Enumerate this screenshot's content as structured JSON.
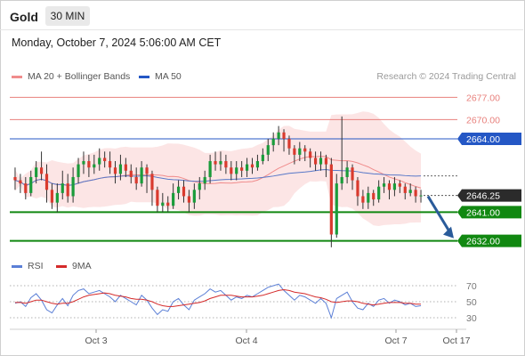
{
  "header": {
    "symbol": "Gold",
    "timeframe": "30 MIN",
    "datetime": "Monday, October 7, 2024 5:06:00 AM CET"
  },
  "legend": {
    "ma20": "MA 20 + Bollinger Bands",
    "ma50": "MA 50",
    "credit": "Research © 2024 Trading Central"
  },
  "rsi_legend": {
    "rsi": "RSI",
    "ma9": "9MA"
  },
  "colors": {
    "resistance": "#e8807c",
    "pivot": "#2457c5",
    "support": "#118811",
    "current": "#2b2b2b",
    "candle_up": "#1a9c3a",
    "candle_down": "#d93a2e",
    "arrow": "#2a5b9a",
    "band": "#fbe1e1",
    "rsi_line": "#5b7fd6",
    "rsi_ma": "#d42a2a"
  },
  "chart_data": [
    {
      "type": "candlestick",
      "title": "Gold",
      "timeframe": "30 MIN",
      "x_ticks": [
        "Oct 3",
        "Oct 4",
        "Oct 7",
        "Oct 17"
      ],
      "ylim": [
        2628,
        2681
      ],
      "levels": [
        {
          "label": "2677.00",
          "value": 2677.0,
          "kind": "resistance"
        },
        {
          "label": "2670.00",
          "value": 2670.0,
          "kind": "resistance"
        },
        {
          "label": "2664.00",
          "value": 2664.0,
          "kind": "pivot"
        },
        {
          "label": "2646.25",
          "value": 2646.25,
          "kind": "current"
        },
        {
          "label": "2641.00",
          "value": 2641.0,
          "kind": "support"
        },
        {
          "label": "2632.00",
          "value": 2632.0,
          "kind": "support"
        }
      ],
      "forecast_arrow": {
        "from": 2646.25,
        "to": 2632.0
      },
      "series": [
        {
          "name": "MA 20 + Bollinger Bands",
          "style": "band"
        },
        {
          "name": "MA 50",
          "style": "line"
        }
      ],
      "candles": [
        [
          2652,
          2651,
          2655,
          2648
        ],
        [
          2651,
          2650,
          2653,
          2647
        ],
        [
          2650,
          2647,
          2652,
          2645
        ],
        [
          2647,
          2652,
          2654,
          2646
        ],
        [
          2652,
          2655,
          2657,
          2650
        ],
        [
          2655,
          2653,
          2660,
          2651
        ],
        [
          2653,
          2648,
          2656,
          2644
        ],
        [
          2648,
          2644,
          2650,
          2642
        ],
        [
          2644,
          2647,
          2650,
          2641
        ],
        [
          2647,
          2650,
          2654,
          2645
        ],
        [
          2650,
          2646,
          2653,
          2644
        ],
        [
          2646,
          2652,
          2655,
          2644
        ],
        [
          2652,
          2656,
          2658,
          2650
        ],
        [
          2656,
          2657,
          2660,
          2653
        ],
        [
          2657,
          2655,
          2659,
          2652
        ],
        [
          2655,
          2656,
          2659,
          2653
        ],
        [
          2656,
          2658,
          2661,
          2654
        ],
        [
          2658,
          2657,
          2660,
          2655
        ],
        [
          2657,
          2655,
          2660,
          2653
        ],
        [
          2655,
          2653,
          2657,
          2650
        ],
        [
          2653,
          2656,
          2659,
          2651
        ],
        [
          2656,
          2654,
          2658,
          2652
        ],
        [
          2654,
          2652,
          2656,
          2650
        ],
        [
          2652,
          2650,
          2655,
          2648
        ],
        [
          2650,
          2655,
          2657,
          2649
        ],
        [
          2655,
          2653,
          2656,
          2647
        ],
        [
          2653,
          2648,
          2654,
          2643
        ],
        [
          2648,
          2643,
          2649,
          2641
        ],
        [
          2643,
          2644,
          2647,
          2641
        ],
        [
          2644,
          2643,
          2646,
          2641
        ],
        [
          2643,
          2647,
          2650,
          2642
        ],
        [
          2647,
          2649,
          2651,
          2645
        ],
        [
          2649,
          2646,
          2651,
          2644
        ],
        [
          2646,
          2644,
          2648,
          2641
        ],
        [
          2644,
          2648,
          2650,
          2642
        ],
        [
          2648,
          2650,
          2652,
          2645
        ],
        [
          2650,
          2652,
          2654,
          2648
        ],
        [
          2652,
          2657,
          2659,
          2650
        ],
        [
          2657,
          2656,
          2660,
          2654
        ],
        [
          2656,
          2657,
          2660,
          2654
        ],
        [
          2657,
          2655,
          2659,
          2653
        ],
        [
          2655,
          2653,
          2657,
          2651
        ],
        [
          2653,
          2655,
          2657,
          2651
        ],
        [
          2655,
          2654,
          2657,
          2652
        ],
        [
          2654,
          2656,
          2658,
          2652
        ],
        [
          2656,
          2655,
          2658,
          2653
        ],
        [
          2655,
          2657,
          2659,
          2654
        ],
        [
          2657,
          2659,
          2661,
          2656
        ],
        [
          2659,
          2662,
          2664,
          2657
        ],
        [
          2662,
          2664,
          2666,
          2660
        ],
        [
          2664,
          2666,
          2668,
          2662
        ],
        [
          2666,
          2664,
          2667,
          2660
        ],
        [
          2664,
          2661,
          2665,
          2659
        ],
        [
          2661,
          2659,
          2662,
          2656
        ],
        [
          2659,
          2661,
          2663,
          2657
        ],
        [
          2661,
          2660,
          2662,
          2657
        ],
        [
          2660,
          2658,
          2661,
          2655
        ],
        [
          2658,
          2656,
          2660,
          2654
        ],
        [
          2656,
          2658,
          2660,
          2654
        ],
        [
          2658,
          2656,
          2659,
          2652
        ],
        [
          2656,
          2634,
          2658,
          2630
        ],
        [
          2634,
          2650,
          2653,
          2633
        ],
        [
          2650,
          2652,
          2671,
          2648
        ],
        [
          2652,
          2655,
          2657,
          2650
        ],
        [
          2655,
          2651,
          2656,
          2648
        ],
        [
          2651,
          2646,
          2652,
          2643
        ],
        [
          2646,
          2644,
          2648,
          2642
        ],
        [
          2644,
          2647,
          2649,
          2642
        ],
        [
          2647,
          2645,
          2648,
          2643
        ],
        [
          2645,
          2649,
          2651,
          2644
        ],
        [
          2649,
          2650,
          2652,
          2647
        ],
        [
          2650,
          2648,
          2651,
          2645
        ],
        [
          2648,
          2650,
          2652,
          2646
        ],
        [
          2650,
          2649,
          2651,
          2647
        ],
        [
          2649,
          2647,
          2650,
          2645
        ],
        [
          2647,
          2648,
          2650,
          2646
        ],
        [
          2648,
          2646,
          2649,
          2644
        ],
        [
          2646,
          2646.25,
          2648,
          2644
        ]
      ]
    },
    {
      "type": "line",
      "title": "RSI",
      "y_ticks": [
        70,
        50,
        30
      ],
      "ylim": [
        20,
        80
      ],
      "series": [
        {
          "name": "RSI",
          "values": [
            48,
            50,
            44,
            55,
            60,
            52,
            40,
            36,
            46,
            54,
            45,
            58,
            64,
            66,
            60,
            62,
            64,
            60,
            56,
            50,
            58,
            54,
            50,
            46,
            58,
            52,
            42,
            34,
            40,
            38,
            50,
            54,
            46,
            40,
            52,
            56,
            60,
            66,
            62,
            64,
            58,
            52,
            56,
            54,
            58,
            56,
            60,
            64,
            68,
            70,
            72,
            64,
            58,
            52,
            58,
            56,
            52,
            48,
            54,
            48,
            30,
            54,
            58,
            62,
            50,
            42,
            40,
            48,
            44,
            52,
            54,
            48,
            52,
            50,
            46,
            48,
            44,
            45
          ]
        },
        {
          "name": "9MA",
          "values": [
            49,
            49,
            48,
            50,
            52,
            52,
            50,
            48,
            47,
            48,
            48,
            50,
            53,
            56,
            58,
            59,
            60,
            61,
            60,
            58,
            57,
            56,
            54,
            53,
            53,
            52,
            50,
            47,
            45,
            44,
            44,
            45,
            46,
            47,
            48,
            49,
            51,
            54,
            56,
            58,
            58,
            58,
            57,
            56,
            56,
            56,
            57,
            58,
            60,
            62,
            64,
            65,
            64,
            62,
            61,
            60,
            58,
            56,
            55,
            53,
            50,
            49,
            50,
            51,
            51,
            50,
            48,
            47,
            46,
            47,
            48,
            49,
            49,
            49,
            48,
            48,
            47,
            47
          ]
        }
      ]
    }
  ]
}
